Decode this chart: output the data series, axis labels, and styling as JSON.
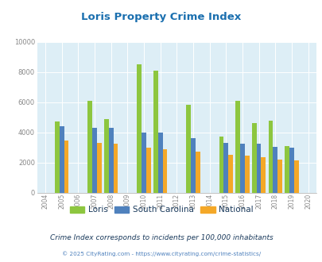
{
  "title": "Loris Property Crime Index",
  "title_color": "#1a6faf",
  "years": [
    2005,
    2007,
    2008,
    2010,
    2011,
    2013,
    2015,
    2016,
    2017,
    2018,
    2019
  ],
  "loris": [
    4700,
    6100,
    4900,
    8500,
    8100,
    5800,
    3700,
    6100,
    4600,
    4750,
    3100
  ],
  "south_carolina": [
    4400,
    4300,
    4300,
    4000,
    4000,
    3600,
    3300,
    3250,
    3250,
    3050,
    3000
  ],
  "national": [
    3450,
    3300,
    3250,
    3000,
    2900,
    2700,
    2500,
    2450,
    2350,
    2200,
    2150
  ],
  "loris_color": "#8dc63f",
  "sc_color": "#4f81bd",
  "national_color": "#f4a828",
  "bg_color": "#ddeef6",
  "ylim": [
    0,
    10000
  ],
  "yticks": [
    0,
    2000,
    4000,
    6000,
    8000,
    10000
  ],
  "all_years": [
    2004,
    2005,
    2006,
    2007,
    2008,
    2009,
    2010,
    2011,
    2012,
    2013,
    2014,
    2015,
    2016,
    2017,
    2018,
    2019,
    2020
  ],
  "note": "Crime Index corresponds to incidents per 100,000 inhabitants",
  "copyright": "© 2025 CityRating.com - https://www.cityrating.com/crime-statistics/",
  "note_color": "#1a3a5c",
  "copyright_color": "#4f81bd",
  "grid_color": "#ffffff",
  "bar_width": 0.28
}
